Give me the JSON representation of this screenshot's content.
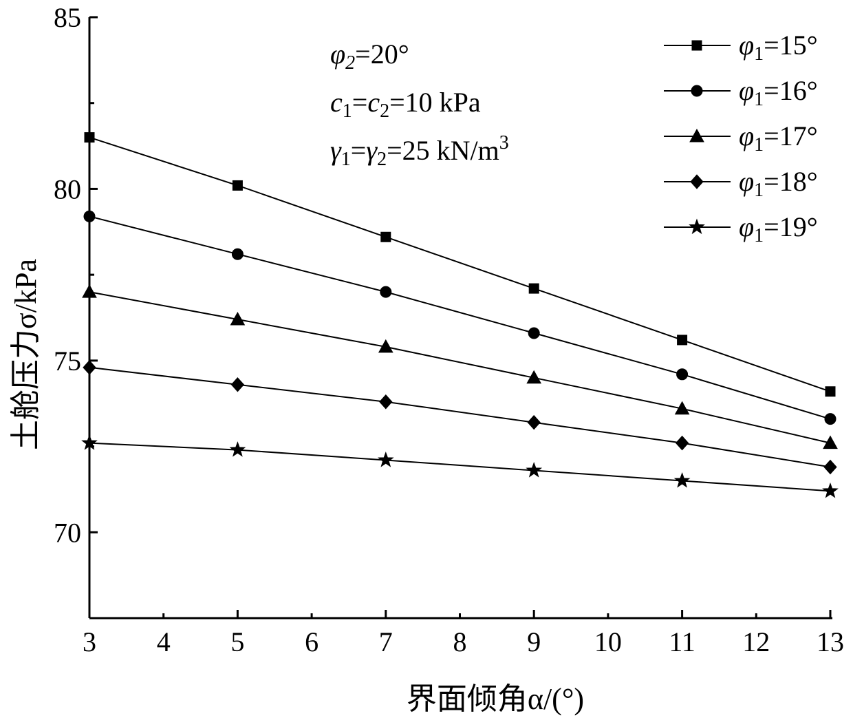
{
  "chart_data": {
    "type": "line",
    "xlabel": "界面倾角α/(°)",
    "ylabel": "土舱压力σ/kPa",
    "xlim": [
      3,
      13
    ],
    "ylim": [
      67.5,
      85
    ],
    "x_ticks": [
      "3",
      "4",
      "5",
      "6",
      "7",
      "8",
      "9",
      "10",
      "11",
      "12",
      "13"
    ],
    "y_ticks": [
      "70",
      "75",
      "80",
      "85"
    ],
    "x": [
      3,
      5,
      7,
      9,
      11,
      13
    ],
    "legend_position": "top-right",
    "series": [
      {
        "name": "φ1=15°",
        "marker": "square",
        "values": [
          81.5,
          80.1,
          78.6,
          77.1,
          75.6,
          74.1
        ]
      },
      {
        "name": "φ1=16°",
        "marker": "circle",
        "values": [
          79.2,
          78.1,
          77.0,
          75.8,
          74.6,
          73.3
        ]
      },
      {
        "name": "φ1=17°",
        "marker": "triangle",
        "values": [
          77.0,
          76.2,
          75.4,
          74.5,
          73.6,
          72.6
        ]
      },
      {
        "name": "φ1=18°",
        "marker": "diamond",
        "values": [
          74.8,
          74.3,
          73.8,
          73.2,
          72.6,
          71.9
        ]
      },
      {
        "name": "φ1=19°",
        "marker": "star",
        "values": [
          72.6,
          72.4,
          72.1,
          71.8,
          71.5,
          71.2
        ]
      }
    ],
    "annotations": {
      "line1": "φ2=20°",
      "line2": "c1=c2=10 kPa",
      "line3": "γ1=γ2=25 kN/m3"
    },
    "colors": {
      "line": "#000000",
      "marker": "#000000"
    },
    "grid": false
  }
}
